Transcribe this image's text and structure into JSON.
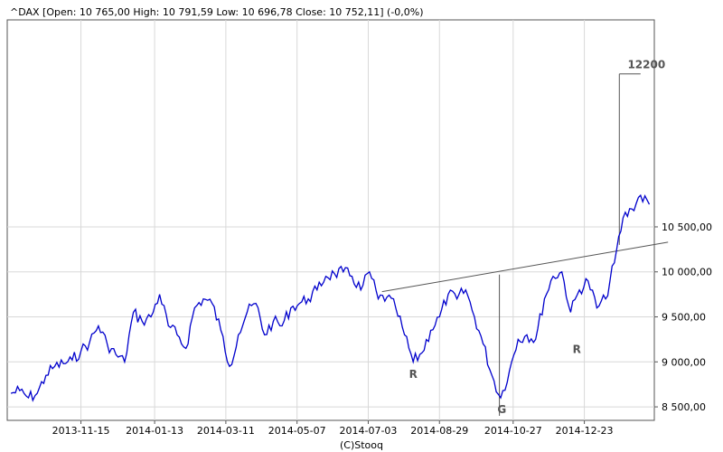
{
  "chart_data": {
    "type": "line",
    "title": "^DAX [Open: 10 765,00  High: 10 791,59  Low: 10 696,78  Close: 10 752,11] (-0,0%)",
    "footer": "(C)Stooq",
    "xlabel": "",
    "ylabel": "",
    "x_ticks": [
      "2013-11-15",
      "2014-01-13",
      "2014-03-11",
      "2014-05-07",
      "2014-07-03",
      "2014-08-29",
      "2014-10-27",
      "2014-12-23"
    ],
    "y_ticks": [
      {
        "value": 8500,
        "label": "8 500,00"
      },
      {
        "value": 9000,
        "label": "9 000,00"
      },
      {
        "value": 9500,
        "label": "9 500,00"
      },
      {
        "value": 10000,
        "label": "10 000,00"
      },
      {
        "value": 10500,
        "label": "10 500,00"
      }
    ],
    "ylim": [
      8350,
      12800
    ],
    "grid": true,
    "line_color": "#0000cc",
    "series": [
      {
        "values": [
          [
            "2013-09-20",
            8650
          ],
          [
            "2013-09-27",
            8680
          ],
          [
            "2013-10-04",
            8600
          ],
          [
            "2013-10-11",
            8650
          ],
          [
            "2013-10-18",
            8850
          ],
          [
            "2013-10-25",
            8950
          ],
          [
            "2013-11-01",
            8980
          ],
          [
            "2013-11-08",
            9020
          ],
          [
            "2013-11-15",
            9120
          ],
          [
            "2013-11-22",
            9220
          ],
          [
            "2013-11-29",
            9400
          ],
          [
            "2013-12-06",
            9200
          ],
          [
            "2013-12-13",
            9080
          ],
          [
            "2013-12-20",
            9000
          ],
          [
            "2013-12-27",
            9550
          ],
          [
            "2014-01-03",
            9450
          ],
          [
            "2014-01-10",
            9500
          ],
          [
            "2014-01-17",
            9750
          ],
          [
            "2014-01-24",
            9400
          ],
          [
            "2014-01-31",
            9300
          ],
          [
            "2014-02-07",
            9150
          ],
          [
            "2014-02-14",
            9600
          ],
          [
            "2014-02-21",
            9700
          ],
          [
            "2014-02-28",
            9650
          ],
          [
            "2014-03-07",
            9350
          ],
          [
            "2014-03-14",
            8950
          ],
          [
            "2014-03-21",
            9300
          ],
          [
            "2014-03-28",
            9550
          ],
          [
            "2014-04-04",
            9650
          ],
          [
            "2014-04-11",
            9300
          ],
          [
            "2014-04-18",
            9450
          ],
          [
            "2014-04-25",
            9400
          ],
          [
            "2014-05-02",
            9600
          ],
          [
            "2014-05-09",
            9650
          ],
          [
            "2014-05-16",
            9700
          ],
          [
            "2014-05-23",
            9800
          ],
          [
            "2014-05-30",
            9950
          ],
          [
            "2014-06-06",
            9980
          ],
          [
            "2014-06-13",
            10000
          ],
          [
            "2014-06-20",
            9950
          ],
          [
            "2014-06-27",
            9800
          ],
          [
            "2014-07-04",
            10000
          ],
          [
            "2014-07-11",
            9700
          ],
          [
            "2014-07-18",
            9720
          ],
          [
            "2014-07-25",
            9600
          ],
          [
            "2014-08-01",
            9300
          ],
          [
            "2014-08-08",
            9000
          ],
          [
            "2014-08-15",
            9100
          ],
          [
            "2014-08-22",
            9350
          ],
          [
            "2014-08-29",
            9500
          ],
          [
            "2014-09-05",
            9750
          ],
          [
            "2014-09-12",
            9700
          ],
          [
            "2014-09-19",
            9800
          ],
          [
            "2014-09-26",
            9500
          ],
          [
            "2014-10-03",
            9200
          ],
          [
            "2014-10-10",
            8850
          ],
          [
            "2014-10-17",
            8600
          ],
          [
            "2014-10-24",
            8900
          ],
          [
            "2014-10-31",
            9250
          ],
          [
            "2014-11-07",
            9300
          ],
          [
            "2014-11-14",
            9250
          ],
          [
            "2014-11-21",
            9700
          ],
          [
            "2014-11-28",
            9950
          ],
          [
            "2014-12-05",
            10000
          ],
          [
            "2014-12-12",
            9550
          ],
          [
            "2014-12-19",
            9800
          ],
          [
            "2014-12-26",
            9900
          ],
          [
            "2015-01-02",
            9600
          ],
          [
            "2015-01-09",
            9700
          ],
          [
            "2015-01-16",
            10100
          ],
          [
            "2015-01-23",
            10600
          ],
          [
            "2015-01-30",
            10700
          ],
          [
            "2015-02-06",
            10850
          ],
          [
            "2015-02-13",
            10750
          ]
        ]
      }
    ],
    "annotations": [
      {
        "label": "R",
        "x": "2014-08-08",
        "y": 8820
      },
      {
        "label": "G",
        "x": "2014-10-18",
        "y": 8430
      },
      {
        "label": "R",
        "x": "2014-12-17",
        "y": 9100
      },
      {
        "label": "12200",
        "x": "2015-01-23",
        "y": 12200
      }
    ],
    "trendline": {
      "from": [
        "2014-07-14",
        9780
      ],
      "to": [
        "2015-02-28",
        10330
      ]
    },
    "target_measure": {
      "x": "2014-10-16",
      "y_low": 8400,
      "y_high": 9970
    },
    "target_projection": {
      "x": "2015-01-20",
      "y_low": 10300,
      "y_high": 12200,
      "cap_to": "2015-02-06"
    }
  }
}
